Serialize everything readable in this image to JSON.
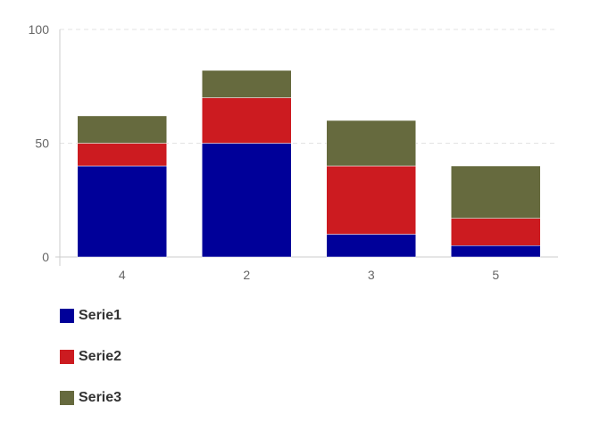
{
  "chart_data": {
    "type": "bar",
    "stacked": true,
    "categories": [
      "4",
      "2",
      "3",
      "5"
    ],
    "series": [
      {
        "name": "Serie1",
        "color": "#000099",
        "values": [
          40,
          50,
          10,
          5
        ]
      },
      {
        "name": "Serie2",
        "color": "#cc1b20",
        "values": [
          10,
          20,
          30,
          12
        ]
      },
      {
        "name": "Serie3",
        "color": "#666a3e",
        "values": [
          12,
          12,
          20,
          23
        ]
      }
    ],
    "yticks": [
      "0",
      "50",
      "100"
    ],
    "ylim": [
      0,
      100
    ],
    "grid": true,
    "legend": "bottom-left"
  }
}
